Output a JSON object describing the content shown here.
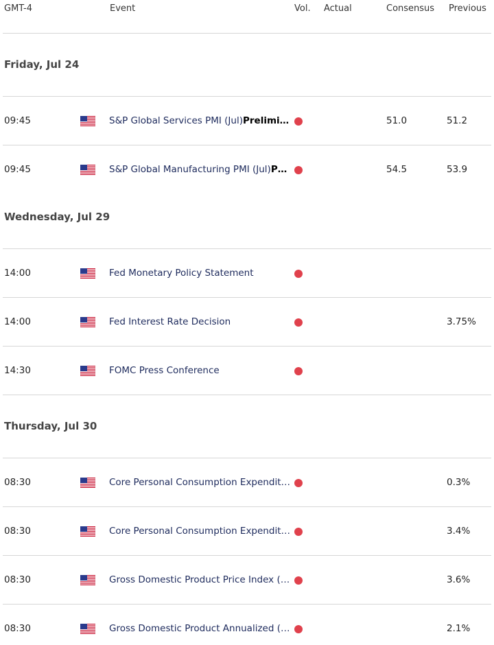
{
  "header": {
    "time": "GMT-4",
    "event": "Event",
    "vol": "Vol.",
    "actual": "Actual",
    "consensus": "Consensus",
    "previous": "Previous"
  },
  "groups": [
    {
      "date": "Friday, Jul 24",
      "rows": [
        {
          "time": "09:45",
          "event": "S&P Global Services PMI (Jul)",
          "event_bold": "Prelimi…",
          "consensus": "51.0",
          "previous": "51.2"
        },
        {
          "time": "09:45",
          "event": "S&P Global Manufacturing PMI (Jul)",
          "event_bold": "P…",
          "consensus": "54.5",
          "previous": "53.9"
        }
      ]
    },
    {
      "date": "Wednesday, Jul 29",
      "rows": [
        {
          "time": "14:00",
          "event": "Fed Monetary Policy Statement"
        },
        {
          "time": "14:00",
          "event": "Fed Interest Rate Decision",
          "previous": "3.75%"
        },
        {
          "time": "14:30",
          "event": "FOMC Press Conference"
        }
      ]
    },
    {
      "date": "Thursday, Jul 30",
      "rows": [
        {
          "time": "08:30",
          "event": "Core Personal Consumption Expendit…",
          "previous": "0.3%"
        },
        {
          "time": "08:30",
          "event": "Core Personal Consumption Expendit…",
          "previous": "3.4%"
        },
        {
          "time": "08:30",
          "event": "Gross Domestic Product Price Index (…",
          "previous": "3.6%"
        },
        {
          "time": "08:30",
          "event": "Gross Domestic Product Annualized (…",
          "previous": "2.1%"
        }
      ]
    }
  ]
}
